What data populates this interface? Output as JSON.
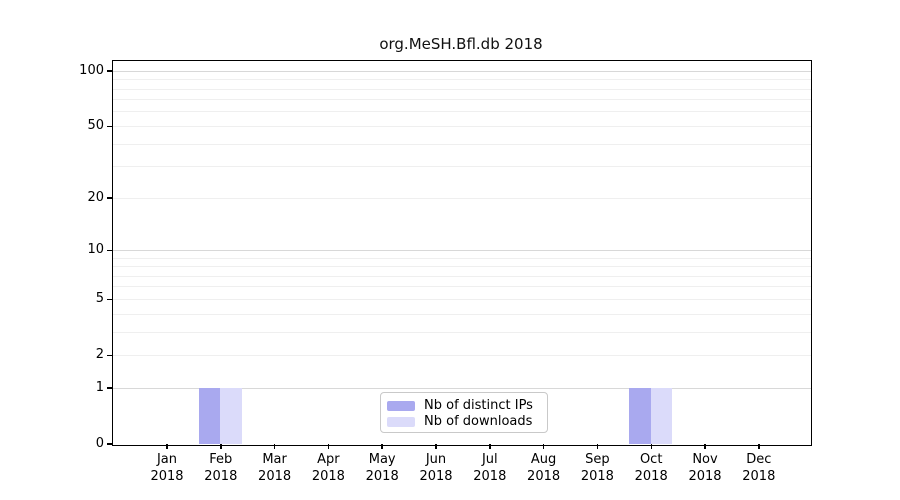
{
  "chart_data": {
    "type": "bar",
    "title": "org.MeSH.Bfl.db 2018",
    "categories": [
      "Jan",
      "Feb",
      "Mar",
      "Apr",
      "May",
      "Jun",
      "Jul",
      "Aug",
      "Sep",
      "Oct",
      "Nov",
      "Dec"
    ],
    "category_sublabel": "2018",
    "series": [
      {
        "name": "Nb of distinct IPs",
        "color": "#a9a9ef",
        "values": [
          0,
          1,
          0,
          0,
          0,
          0,
          0,
          0,
          0,
          1,
          0,
          0
        ]
      },
      {
        "name": "Nb of downloads",
        "color": "#dbdbfa",
        "values": [
          0,
          1,
          0,
          0,
          0,
          0,
          0,
          0,
          0,
          1,
          0,
          0
        ]
      }
    ],
    "xlabel": "",
    "ylabel": "",
    "y_scale": "log10(1+y)",
    "y_ticks": [
      0,
      1,
      2,
      5,
      10,
      20,
      50,
      100
    ],
    "y_major_gridlines": [
      1,
      10,
      100
    ],
    "y_minor_gridlines": [
      2,
      3,
      4,
      5,
      6,
      7,
      8,
      9,
      20,
      30,
      40,
      50,
      60,
      70,
      80,
      90
    ],
    "ylim": [
      0,
      117
    ],
    "grid": true,
    "legend_position": "lower center"
  },
  "style": {
    "major_grid_color": "#d8d8d8",
    "minor_grid_color": "#efefef",
    "axis_color": "#000000",
    "legend_border_color": "#c9c9c9",
    "background": "#ffffff"
  }
}
